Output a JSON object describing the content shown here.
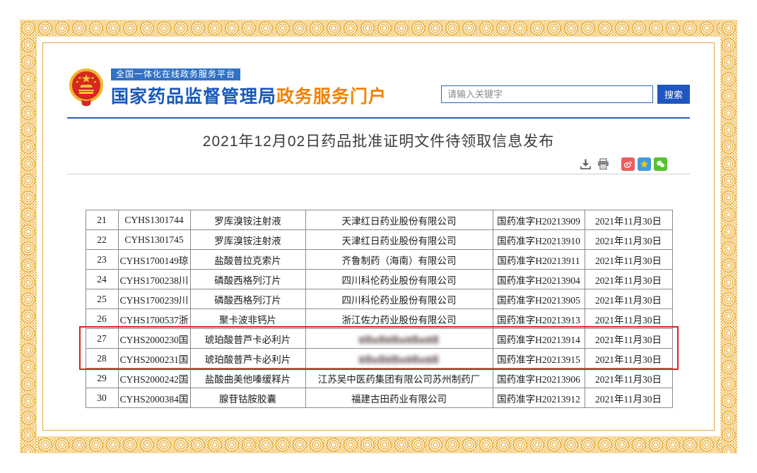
{
  "page": {
    "title": "2021年12月02日药品批准证明文件待领取信息发布"
  },
  "header": {
    "platform_badge": "全国一体化在线政务服务平台",
    "agency_name": "国家药品监督管理局",
    "portal_name": "政务服务门户",
    "search_placeholder": "请输入关键字",
    "search_button": "搜索"
  },
  "toolbar": {
    "icons": [
      "download-icon",
      "print-icon"
    ],
    "share_icons": [
      "weibo-share-icon",
      "qzone-share-icon",
      "wechat-share-icon"
    ]
  },
  "colors": {
    "border_gold": "#e7a626",
    "brand_blue": "#1659b8",
    "portal_orange": "#f08200",
    "badge_blue": "#3272c6",
    "search_button_blue": "#1f56bf",
    "highlight_red": "#dc231c",
    "weibo_red": "#ea5d5c",
    "qzone_blue": "#3f9bdc",
    "wechat_green": "#54c231"
  },
  "table": {
    "redacted_placeholder": "▆▇▅▇▆▇▅▆▇▅▆▇",
    "rows": [
      {
        "no": "21",
        "approval_no": "CYHS1301744",
        "drug": "罗库溴铵注射液",
        "company": "天津红日药业股份有限公司",
        "cert_no": "国药准字H20213909",
        "date": "2021年11月30日",
        "redacted": false,
        "highlighted": false
      },
      {
        "no": "22",
        "approval_no": "CYHS1301745",
        "drug": "罗库溴铵注射液",
        "company": "天津红日药业股份有限公司",
        "cert_no": "国药准字H20213910",
        "date": "2021年11月30日",
        "redacted": false,
        "highlighted": false
      },
      {
        "no": "23",
        "approval_no": "CYHS1700149琼",
        "drug": "盐酸普拉克索片",
        "company": "齐鲁制药（海南）有限公司",
        "cert_no": "国药准字H20213911",
        "date": "2021年11月30日",
        "redacted": false,
        "highlighted": false
      },
      {
        "no": "24",
        "approval_no": "CYHS1700238川",
        "drug": "磷酸西格列汀片",
        "company": "四川科伦药业股份有限公司",
        "cert_no": "国药准字H20213904",
        "date": "2021年11月30日",
        "redacted": false,
        "highlighted": false
      },
      {
        "no": "25",
        "approval_no": "CYHS1700239川",
        "drug": "磷酸西格列汀片",
        "company": "四川科伦药业股份有限公司",
        "cert_no": "国药准字H20213905",
        "date": "2021年11月30日",
        "redacted": false,
        "highlighted": false
      },
      {
        "no": "26",
        "approval_no": "CYHS1700537浙",
        "drug": "聚卡波非钙片",
        "company": "浙江佐力药业股份有限公司",
        "cert_no": "国药准字H20213913",
        "date": "2021年11月30日",
        "redacted": false,
        "highlighted": false
      },
      {
        "no": "27",
        "approval_no": "CYHS2000230国",
        "drug": "琥珀酸普芦卡必利片",
        "company": "",
        "cert_no": "国药准字H20213914",
        "date": "2021年11月30日",
        "redacted": true,
        "highlighted": true
      },
      {
        "no": "28",
        "approval_no": "CYHS2000231国",
        "drug": "琥珀酸普芦卡必利片",
        "company": "",
        "cert_no": "国药准字H20213915",
        "date": "2021年11月30日",
        "redacted": true,
        "highlighted": true
      },
      {
        "no": "29",
        "approval_no": "CYHS2000242国",
        "drug": "盐酸曲美他嗪缓释片",
        "company": "江苏吴中医药集团有限公司苏州制药厂",
        "cert_no": "国药准字H20213906",
        "date": "2021年11月30日",
        "redacted": false,
        "highlighted": false
      },
      {
        "no": "30",
        "approval_no": "CYHS2000384国",
        "drug": "腺苷钴胺胶囊",
        "company": "福建古田药业有限公司",
        "cert_no": "国药准字H20213912",
        "date": "2021年11月30日",
        "redacted": false,
        "highlighted": false
      }
    ]
  }
}
